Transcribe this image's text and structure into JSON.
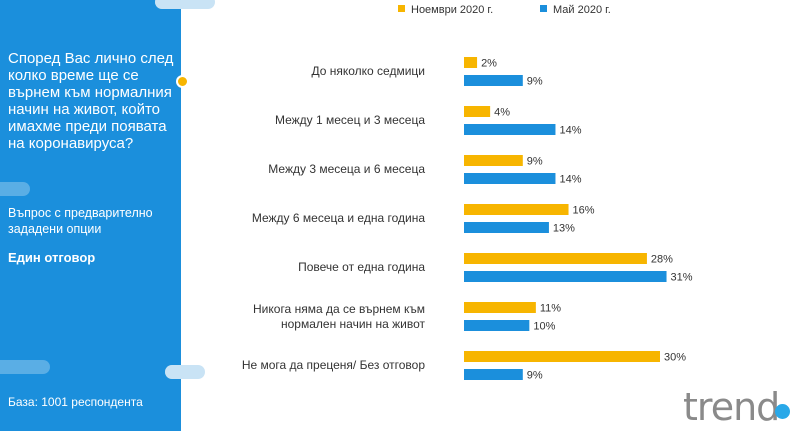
{
  "sidebar": {
    "question": "Според Вас лично след колко време ще се върнем към нормалния начин на живот, който имахме преди появата на коронавируса?",
    "question_type": "Въпрос с предварително зададени опции",
    "answer_type": "Един отговор",
    "base": "База: 1001 респондента"
  },
  "logo": {
    "text": "trend"
  },
  "colors": {
    "sidebar": "#1b8fdc",
    "nov": "#f7b500",
    "may": "#1b8fdc"
  },
  "chart_data": {
    "type": "bar",
    "orientation": "horizontal",
    "categories": [
      "До няколко седмици",
      "Между 1 месец и 3 месеца",
      "Между 3 месеца и 6 месеца",
      "Между 6 месеца и една година",
      "Повече от една година",
      "Никога няма да се върнем към нормален начин на живот",
      "Не мога да преценя/ Без отговор"
    ],
    "series": [
      {
        "name": "Ноември 2020 г.",
        "color": "#f7b500",
        "values": [
          2,
          4,
          9,
          16,
          28,
          11,
          30
        ],
        "labels": [
          "2%",
          "4%",
          "9%",
          "16%",
          "28%",
          "11%",
          "30%"
        ]
      },
      {
        "name": "Май 2020 г.",
        "color": "#1b8fdc",
        "values": [
          9,
          14,
          14,
          13,
          31,
          10,
          9
        ],
        "labels": [
          "9%",
          "14%",
          "14%",
          "13%",
          "31%",
          "10%",
          "9%"
        ]
      }
    ],
    "legend_position": "top",
    "xlim": [
      0,
      35
    ],
    "grid": false
  }
}
